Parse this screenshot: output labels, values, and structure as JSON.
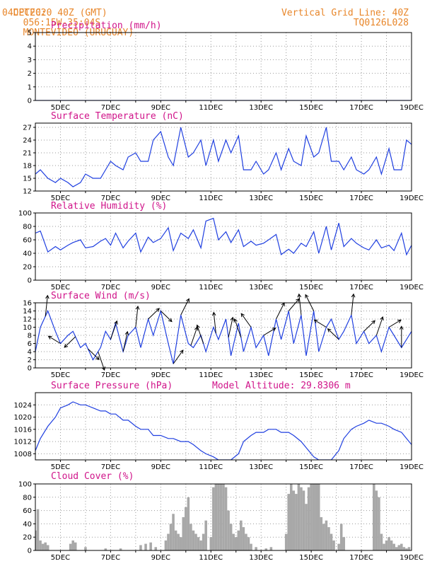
{
  "header": {
    "source": "CPTEC:",
    "coords": "056:15W-35:04S",
    "location": "MONTEVIDEO (URUGUAY)",
    "date": "04DEC2020 40Z (GMT)",
    "grid_note": "Vertical Grid Line: 40Z",
    "model": "TQ0126L028"
  },
  "colors": {
    "line": "#1f3fe0",
    "bars": "#a8a8a8",
    "title": "#d0148a",
    "header": "#e8862a"
  },
  "chart_data": [
    {
      "type": "line",
      "title": "Precipitation (mm/h)",
      "x_ticks": [
        "5DEC",
        "7DEC",
        "9DEC",
        "11DEC",
        "13DEC",
        "15DEC",
        "17DEC",
        "19DEC"
      ],
      "y_ticks": [
        0,
        1,
        2,
        3,
        4,
        5
      ],
      "ylim": [
        0,
        5
      ],
      "grid": true,
      "x": [
        4,
        19
      ],
      "values": [
        0,
        0
      ]
    },
    {
      "type": "line",
      "title": "Surface Temperature (nC)",
      "x_ticks": [
        "5DEC",
        "7DEC",
        "9DEC",
        "11DEC",
        "13DEC",
        "15DEC",
        "17DEC",
        "19DEC"
      ],
      "y_ticks": [
        12,
        15,
        18,
        21,
        24,
        27
      ],
      "ylim": [
        12,
        28
      ],
      "grid": true,
      "x": [
        4.0,
        4.2,
        4.5,
        4.8,
        5.0,
        5.3,
        5.5,
        5.8,
        6.0,
        6.3,
        6.6,
        6.8,
        7.0,
        7.2,
        7.5,
        7.7,
        8.0,
        8.2,
        8.5,
        8.7,
        9.0,
        9.3,
        9.5,
        9.8,
        10.1,
        10.3,
        10.6,
        10.8,
        11.1,
        11.3,
        11.6,
        11.8,
        12.1,
        12.3,
        12.6,
        12.8,
        13.1,
        13.3,
        13.6,
        13.8,
        14.1,
        14.3,
        14.6,
        14.8,
        15.1,
        15.3,
        15.6,
        15.8,
        16.1,
        16.3,
        16.6,
        16.8,
        17.1,
        17.3,
        17.6,
        17.8,
        18.1,
        18.3,
        18.6,
        18.8,
        19.0
      ],
      "values": [
        16,
        17,
        15,
        14,
        15,
        14,
        13,
        14,
        16,
        15,
        15,
        17,
        19,
        18,
        17,
        20,
        21,
        19,
        19,
        24,
        26,
        20,
        18,
        27,
        20,
        21,
        24,
        18,
        24,
        19,
        24,
        21,
        25,
        17,
        17,
        19,
        16,
        17,
        21,
        17,
        22,
        19,
        18,
        25,
        20,
        21,
        27,
        19,
        19,
        17,
        20,
        17,
        16,
        17,
        20,
        16,
        22,
        17,
        17,
        24,
        23
      ]
    },
    {
      "type": "line",
      "title": "Relative Humidity (%)",
      "x_ticks": [
        "5DEC",
        "7DEC",
        "9DEC",
        "11DEC",
        "13DEC",
        "15DEC",
        "17DEC",
        "19DEC"
      ],
      "y_ticks": [
        0,
        20,
        40,
        60,
        80,
        100
      ],
      "ylim": [
        0,
        100
      ],
      "grid": true,
      "x": [
        4.0,
        4.2,
        4.5,
        4.8,
        5.0,
        5.3,
        5.5,
        5.8,
        6.0,
        6.3,
        6.6,
        6.8,
        7.0,
        7.2,
        7.5,
        7.7,
        8.0,
        8.2,
        8.5,
        8.7,
        9.0,
        9.3,
        9.5,
        9.8,
        10.1,
        10.3,
        10.6,
        10.8,
        11.1,
        11.3,
        11.6,
        11.8,
        12.1,
        12.3,
        12.6,
        12.8,
        13.1,
        13.3,
        13.6,
        13.8,
        14.1,
        14.3,
        14.6,
        14.8,
        15.1,
        15.3,
        15.6,
        15.8,
        16.1,
        16.3,
        16.6,
        16.8,
        17.1,
        17.3,
        17.6,
        17.8,
        18.1,
        18.3,
        18.6,
        18.8,
        19.0
      ],
      "values": [
        70,
        73,
        42,
        50,
        45,
        52,
        56,
        60,
        48,
        50,
        58,
        62,
        52,
        70,
        48,
        58,
        70,
        42,
        64,
        56,
        62,
        78,
        44,
        70,
        62,
        75,
        48,
        88,
        92,
        60,
        72,
        56,
        75,
        50,
        58,
        52,
        55,
        60,
        68,
        38,
        46,
        40,
        55,
        50,
        72,
        40,
        80,
        45,
        85,
        50,
        62,
        55,
        48,
        45,
        60,
        48,
        52,
        44,
        70,
        38,
        52
      ]
    },
    {
      "type": "line",
      "title": "Surface Wind (m/s)",
      "x_ticks": [
        "5DEC",
        "7DEC",
        "9DEC",
        "11DEC",
        "13DEC",
        "15DEC",
        "17DEC",
        "19DEC"
      ],
      "y_ticks": [
        0,
        2,
        4,
        6,
        8,
        10,
        12,
        14,
        16
      ],
      "ylim": [
        0,
        16
      ],
      "grid": true,
      "x": [
        4.0,
        4.2,
        4.5,
        4.8,
        5.0,
        5.3,
        5.5,
        5.8,
        6.0,
        6.3,
        6.6,
        6.8,
        7.0,
        7.2,
        7.5,
        7.7,
        8.0,
        8.2,
        8.5,
        8.7,
        9.0,
        9.3,
        9.5,
        9.8,
        10.1,
        10.3,
        10.6,
        10.8,
        11.1,
        11.3,
        11.6,
        11.8,
        12.1,
        12.3,
        12.6,
        12.8,
        13.1,
        13.3,
        13.6,
        13.8,
        14.1,
        14.3,
        14.6,
        14.8,
        15.1,
        15.3,
        15.6,
        15.8,
        16.1,
        16.3,
        16.6,
        16.8,
        17.1,
        17.3,
        17.6,
        17.8,
        18.1,
        18.3,
        18.6,
        18.8,
        19.0
      ],
      "values": [
        4,
        10,
        14,
        9,
        6,
        8,
        9,
        5,
        6,
        2,
        5,
        9,
        7,
        11,
        4,
        8,
        10,
        5,
        12,
        8,
        14,
        6,
        1,
        13,
        6,
        5,
        8,
        4,
        10,
        7,
        12,
        3,
        11,
        4,
        10,
        5,
        8,
        3,
        12,
        7,
        14,
        6,
        13,
        3,
        14,
        4,
        10,
        12,
        7,
        9,
        13,
        6,
        9,
        6,
        8,
        4,
        10,
        8,
        5,
        7,
        9
      ],
      "arrow_days": [
        4.4,
        5.0,
        5.6,
        6.1,
        6.5,
        7.0,
        7.5,
        8.0,
        8.5,
        9.0,
        9.5,
        9.8,
        10.2,
        10.7,
        11.2,
        11.7,
        12.2,
        12.6,
        13.1,
        13.6,
        14.1,
        14.6,
        15.1,
        15.6,
        16.1,
        16.6,
        17.1,
        17.6,
        18.1,
        18.6
      ],
      "arrow_dir_deg": [
        80,
        160,
        210,
        330,
        300,
        60,
        70,
        80,
        30,
        330,
        40,
        50,
        60,
        120,
        100,
        70,
        120,
        140,
        20,
        50,
        35,
        100,
        130,
        160,
        150,
        80,
        30,
        60,
        20,
        90
      ]
    },
    {
      "type": "line",
      "title": "Surface Pressure (hPa)",
      "annotation": "Model Altitude: 29.8306 m",
      "x_ticks": [
        "5DEC",
        "7DEC",
        "9DEC",
        "11DEC",
        "13DEC",
        "15DEC",
        "17DEC",
        "19DEC"
      ],
      "y_ticks": [
        1008,
        1012,
        1016,
        1020,
        1024
      ],
      "ylim": [
        1006,
        1028
      ],
      "grid": true,
      "x": [
        4.0,
        4.2,
        4.5,
        4.8,
        5.0,
        5.3,
        5.5,
        5.8,
        6.0,
        6.3,
        6.6,
        6.8,
        7.0,
        7.2,
        7.5,
        7.7,
        8.0,
        8.2,
        8.5,
        8.7,
        9.0,
        9.3,
        9.5,
        9.8,
        10.1,
        10.3,
        10.6,
        10.8,
        11.1,
        11.3,
        11.6,
        11.8,
        12.1,
        12.3,
        12.6,
        12.8,
        13.1,
        13.3,
        13.6,
        13.8,
        14.1,
        14.3,
        14.6,
        14.8,
        15.1,
        15.3,
        15.6,
        15.8,
        16.1,
        16.3,
        16.6,
        16.8,
        17.1,
        17.3,
        17.6,
        17.8,
        18.1,
        18.3,
        18.6,
        18.8,
        19.0
      ],
      "values": [
        1009,
        1013,
        1017,
        1020,
        1023,
        1024,
        1025,
        1024,
        1024,
        1023,
        1022,
        1022,
        1021,
        1021,
        1019,
        1019,
        1017,
        1016,
        1016,
        1014,
        1014,
        1013,
        1013,
        1012,
        1012,
        1011,
        1009,
        1008,
        1007,
        1006,
        1006,
        1006,
        1008,
        1012,
        1014,
        1015,
        1015,
        1016,
        1016,
        1015,
        1015,
        1014,
        1012,
        1010,
        1007,
        1006,
        1006,
        1006,
        1009,
        1013,
        1016,
        1017,
        1018,
        1019,
        1018,
        1018,
        1017,
        1016,
        1015,
        1013,
        1011
      ]
    },
    {
      "type": "bar",
      "title": "Cloud Cover (%)",
      "x_ticks": [
        "5DEC",
        "7DEC",
        "9DEC",
        "11DEC",
        "13DEC",
        "15DEC",
        "17DEC",
        "19DEC"
      ],
      "y_ticks": [
        0,
        20,
        40,
        60,
        80,
        100
      ],
      "ylim": [
        0,
        100
      ],
      "grid": true,
      "x": [
        4.0,
        4.1,
        4.2,
        4.3,
        4.4,
        4.5,
        5.4,
        5.5,
        5.6,
        6.0,
        6.8,
        7.4,
        8.2,
        8.4,
        8.6,
        8.8,
        9.2,
        9.3,
        9.4,
        9.5,
        9.6,
        9.7,
        9.8,
        9.9,
        10.0,
        10.1,
        10.2,
        10.3,
        10.4,
        10.5,
        10.6,
        10.7,
        10.8,
        11.0,
        11.1,
        11.2,
        11.3,
        11.4,
        11.5,
        11.6,
        11.7,
        11.8,
        11.9,
        12.0,
        12.1,
        12.2,
        12.3,
        12.4,
        12.5,
        12.6,
        12.8,
        13.2,
        13.4,
        14.0,
        14.1,
        14.2,
        14.3,
        14.4,
        14.5,
        14.6,
        14.7,
        14.8,
        14.9,
        15.0,
        15.1,
        15.2,
        15.3,
        15.4,
        15.5,
        15.6,
        15.7,
        15.8,
        15.9,
        16.1,
        16.2,
        16.3,
        17.5,
        17.6,
        17.7,
        17.8,
        17.9,
        18.0,
        18.1,
        18.2,
        18.3,
        18.4,
        18.5,
        18.6,
        18.7,
        18.8,
        18.9
      ],
      "values": [
        30,
        62,
        15,
        10,
        12,
        8,
        10,
        15,
        12,
        5,
        3,
        3,
        8,
        10,
        12,
        5,
        15,
        25,
        40,
        55,
        30,
        25,
        20,
        50,
        65,
        80,
        40,
        30,
        25,
        20,
        15,
        25,
        45,
        20,
        95,
        100,
        100,
        100,
        100,
        95,
        60,
        40,
        25,
        20,
        30,
        45,
        35,
        25,
        20,
        10,
        5,
        3,
        5,
        25,
        85,
        100,
        90,
        85,
        100,
        95,
        90,
        70,
        95,
        100,
        100,
        100,
        100,
        50,
        40,
        45,
        35,
        25,
        15,
        10,
        40,
        20,
        100,
        90,
        80,
        25,
        10,
        15,
        20,
        15,
        10,
        5,
        8,
        10,
        5,
        3,
        5
      ]
    }
  ]
}
